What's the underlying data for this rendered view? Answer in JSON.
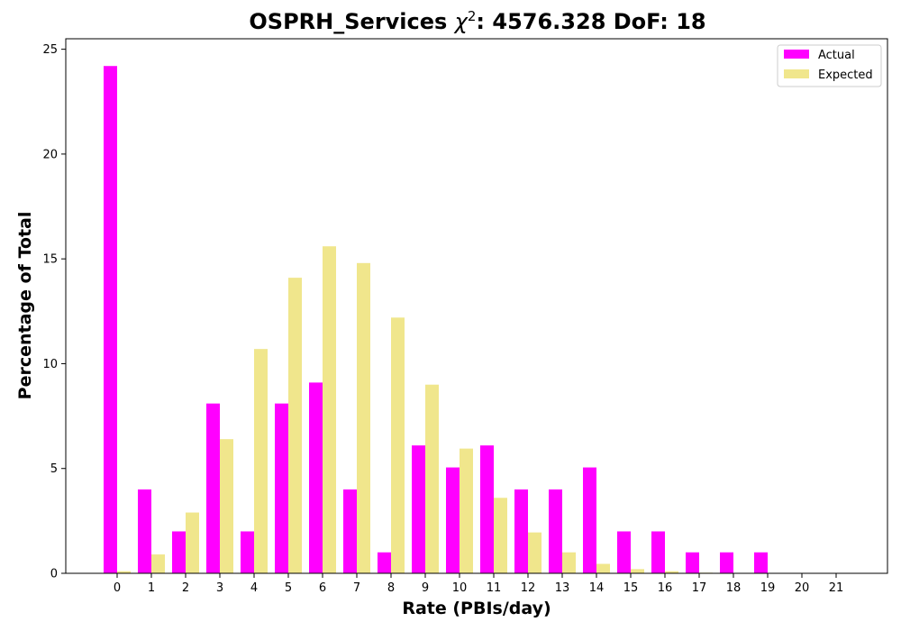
{
  "chart_data": {
    "type": "bar",
    "title": "OSPRH_Services χ²: 4576.328 DoF: 18",
    "title_main": "OSPRH_Services ",
    "title_chi": "χ",
    "title_sup": "2",
    "title_rest": ": 4576.328 DoF: 18",
    "xlabel": "Rate (PBIs/day)",
    "ylabel": "Percentage of Total",
    "ylim": [
      0,
      25.5
    ],
    "yticks": [
      0,
      5,
      10,
      15,
      20,
      25
    ],
    "categories": [
      "0",
      "1",
      "2",
      "3",
      "4",
      "5",
      "6",
      "7",
      "8",
      "9",
      "10",
      "11",
      "12",
      "13",
      "14",
      "15",
      "16",
      "17",
      "18",
      "19",
      "20",
      "21"
    ],
    "series": [
      {
        "name": "Actual",
        "color": "#ff00ff",
        "values": [
          24.2,
          4.0,
          2.0,
          8.1,
          2.0,
          8.1,
          9.1,
          4.0,
          1.0,
          6.1,
          5.05,
          6.1,
          4.0,
          4.0,
          5.05,
          2.0,
          2.0,
          1.0,
          1.0,
          1.0,
          0,
          0
        ]
      },
      {
        "name": "Expected",
        "color": "#f0e68c",
        "values": [
          0.1,
          0.9,
          2.9,
          6.4,
          10.7,
          14.1,
          15.6,
          14.8,
          12.2,
          9.0,
          5.95,
          3.6,
          1.95,
          1.0,
          0.45,
          0.2,
          0.1,
          0.03,
          0.01,
          0,
          0,
          0
        ]
      }
    ],
    "legend_position": "top-right",
    "grid": false
  }
}
